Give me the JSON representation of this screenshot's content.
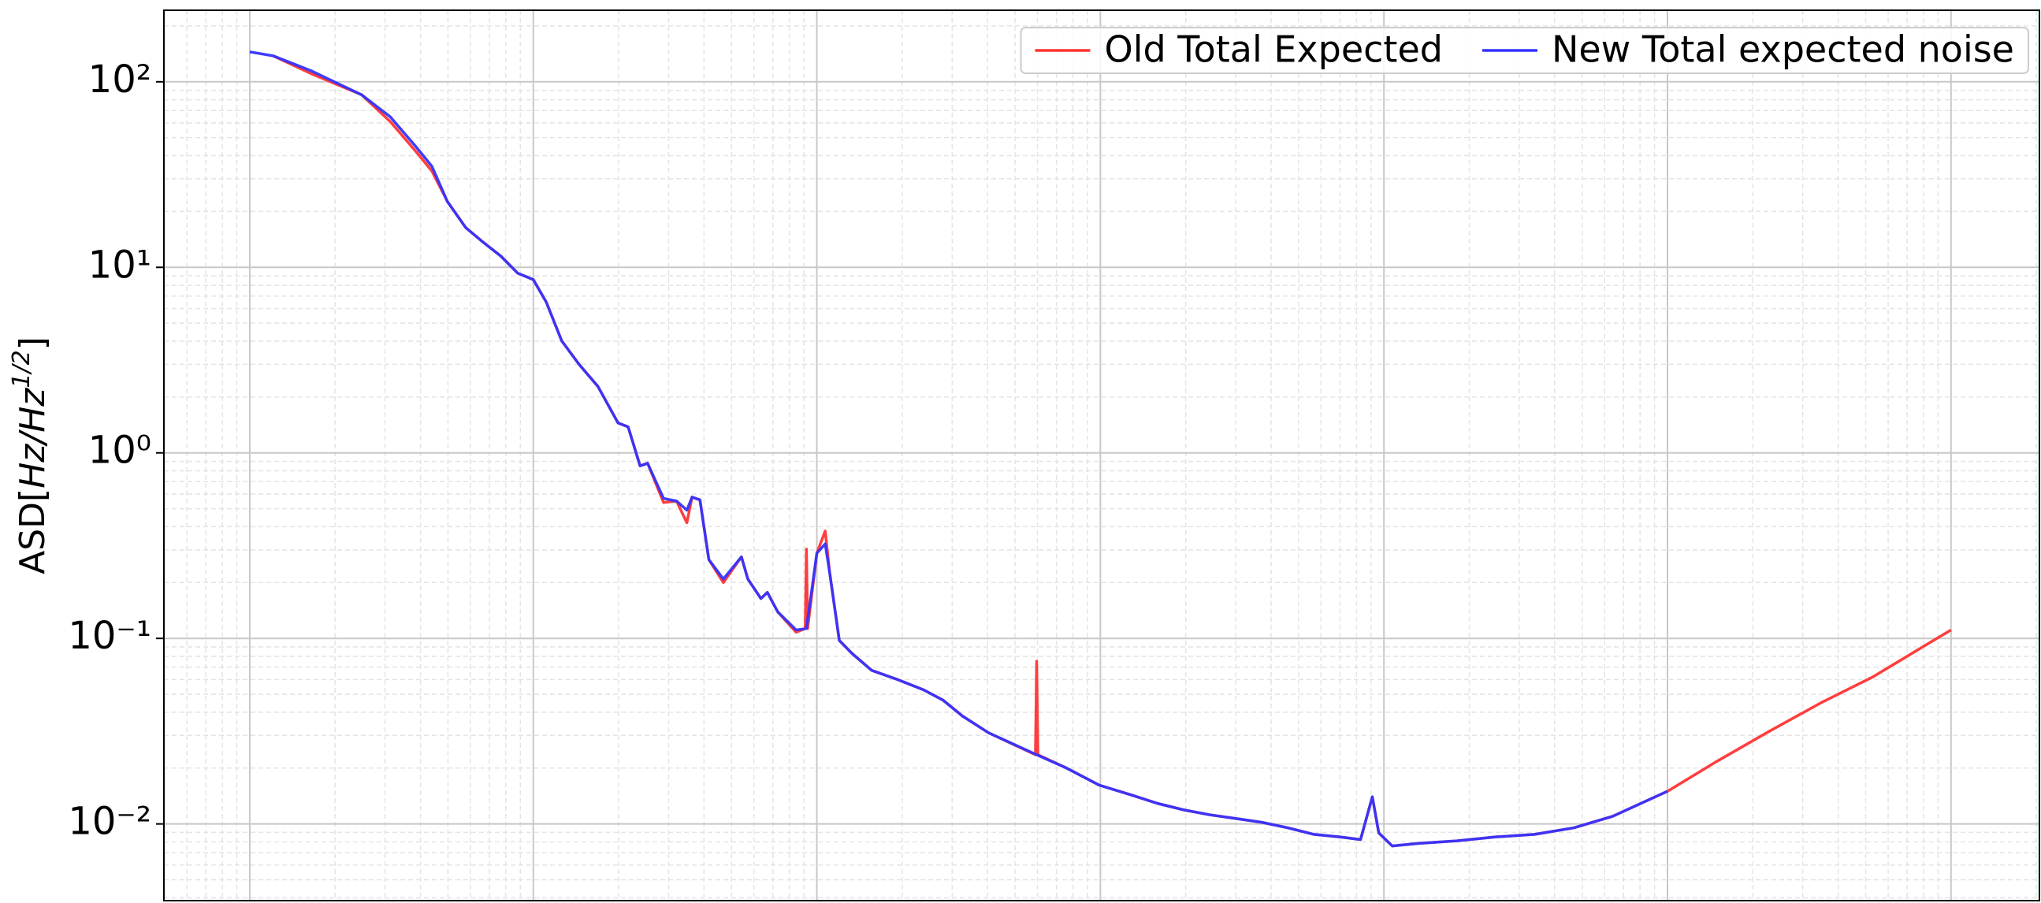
{
  "chart_data": {
    "type": "line",
    "ylabel": {
      "base": "ASD[",
      "unit": "Hz/Hz",
      "exponent": "1/2",
      "close": "]"
    },
    "xscale": "log",
    "yscale": "log",
    "grid": true,
    "legend": "upper right",
    "xlim": [
      0.498,
      2050000
    ],
    "xticks": [
      1,
      10,
      100,
      1000,
      10000,
      100000,
      1000000
    ],
    "ylim": [
      0.00386,
      243
    ],
    "yticks": [
      {
        "value": 0.01,
        "label": "10⁻²"
      },
      {
        "value": 0.1,
        "label": "10⁻¹"
      },
      {
        "value": 1,
        "label": "10⁰"
      },
      {
        "value": 10,
        "label": "10¹"
      },
      {
        "value": 100,
        "label": "10²"
      }
    ],
    "series": [
      {
        "name": "Old Total Expected",
        "color": "#ff3333",
        "x": [
          1.21,
          1.66,
          2.48,
          3.13,
          3.86,
          4.39,
          4.98,
          5.77,
          6.56,
          7.68,
          8.81,
          10,
          11.1,
          12.6,
          14.5,
          16.9,
          19.9,
          21.6,
          23.8,
          25.3,
          28.8,
          32.0,
          34.8,
          36.3,
          38.7,
          41.6,
          46.8,
          54.2,
          57.1,
          63.5,
          66.9,
          72.8,
          84.5,
          91.0,
          91.9,
          92.8,
          100,
          107,
          111,
          120,
          133,
          156,
          192,
          238,
          279,
          326,
          403,
          590,
          596,
          602,
          760,
          989,
          1290,
          1590,
          1970,
          2430,
          3000,
          3710,
          4580,
          5650,
          6980,
          8270,
          9100,
          9590,
          10700,
          13200,
          18100,
          24800,
          34000,
          46800,
          64100,
          100000,
          149000,
          228000,
          348000,
          531000,
          809000,
          1000000
        ],
        "values": [
          138,
          110,
          85.1,
          61,
          42,
          33,
          22.6,
          16.4,
          13.9,
          11.5,
          9.3,
          8.58,
          6.51,
          4.01,
          3.0,
          2.28,
          1.45,
          1.38,
          0.851,
          0.879,
          0.54,
          0.55,
          0.42,
          0.577,
          0.558,
          0.266,
          0.2,
          0.275,
          0.209,
          0.164,
          0.177,
          0.139,
          0.108,
          0.113,
          0.303,
          0.113,
          0.288,
          0.379,
          0.226,
          0.0975,
          0.083,
          0.0673,
          0.0601,
          0.0528,
          0.0464,
          0.0382,
          0.031,
          0.0236,
          0.0753,
          0.0236,
          0.02,
          0.0162,
          0.0143,
          0.0129,
          0.0119,
          0.0112,
          0.0107,
          0.0102,
          0.00953,
          0.00879,
          0.00851,
          0.00824,
          0.014,
          0.00894,
          0.00761,
          0.00785,
          0.00811,
          0.00851,
          0.00879,
          0.00953,
          0.011,
          0.015,
          0.0217,
          0.0315,
          0.045,
          0.0621,
          0.0915,
          0.111
        ]
      },
      {
        "name": "New Total expected noise",
        "color": "#3333ff",
        "x": [
          1,
          1.21,
          1.66,
          2.48,
          3.13,
          3.86,
          4.39,
          4.98,
          5.77,
          6.56,
          7.68,
          8.81,
          10,
          11.1,
          12.6,
          14.5,
          16.9,
          19.9,
          21.6,
          23.8,
          25.3,
          28.8,
          32.0,
          34.8,
          36.3,
          38.7,
          41.6,
          46.8,
          54.2,
          57.1,
          63.5,
          66.9,
          72.8,
          84.5,
          91.9,
          100,
          107,
          111,
          120,
          133,
          156,
          192,
          238,
          279,
          326,
          403,
          596,
          760,
          989,
          1290,
          1590,
          1970,
          2430,
          3000,
          3710,
          4580,
          5650,
          6980,
          8270,
          9100,
          9590,
          10700,
          13200,
          18100,
          24800,
          34000,
          46800,
          64100,
          100000
        ],
        "values": [
          145,
          138,
          114,
          85.1,
          64.7,
          44.6,
          35.0,
          22.6,
          16.4,
          13.9,
          11.5,
          9.3,
          8.58,
          6.51,
          4.01,
          3.0,
          2.28,
          1.45,
          1.38,
          0.851,
          0.879,
          0.568,
          0.55,
          0.491,
          0.577,
          0.558,
          0.266,
          0.209,
          0.275,
          0.209,
          0.164,
          0.177,
          0.139,
          0.111,
          0.113,
          0.288,
          0.323,
          0.226,
          0.0975,
          0.083,
          0.0673,
          0.0601,
          0.0528,
          0.0464,
          0.0382,
          0.031,
          0.0236,
          0.02,
          0.0162,
          0.0143,
          0.0129,
          0.0119,
          0.0112,
          0.0107,
          0.0102,
          0.00953,
          0.00879,
          0.00851,
          0.00824,
          0.014,
          0.00894,
          0.00761,
          0.00785,
          0.00811,
          0.00851,
          0.00879,
          0.00953,
          0.011,
          0.015
        ]
      }
    ]
  }
}
